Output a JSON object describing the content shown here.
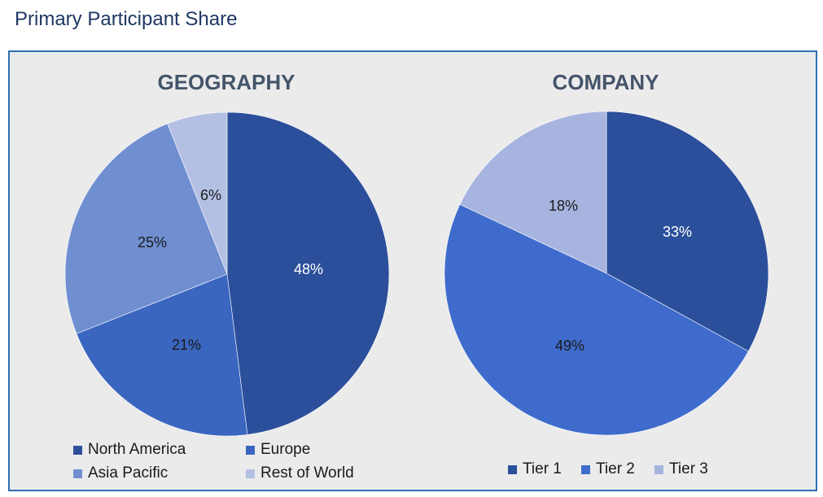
{
  "page": {
    "title": "Primary Participant Share"
  },
  "chart_data": [
    {
      "type": "pie",
      "title": "GEOGRAPHY",
      "categories": [
        "North America",
        "Europe",
        "Asia Pacific",
        "Rest of World"
      ],
      "values": [
        48,
        21,
        25,
        6
      ],
      "labels": [
        "48%",
        "21%",
        "25%",
        "6%"
      ],
      "colors": [
        "#2c4f9b",
        "#3b66c0",
        "#6f8fd1",
        "#b4c0e3"
      ],
      "label_colors": [
        "#ffffff",
        "#1a1a1a",
        "#1a1a1a",
        "#1a1a1a"
      ],
      "legend_position": "bottom"
    },
    {
      "type": "pie",
      "title": "COMPANY",
      "categories": [
        "Tier 1",
        "Tier 2",
        "Tier 3"
      ],
      "values": [
        33,
        49,
        18
      ],
      "labels": [
        "33%",
        "49%",
        "18%"
      ],
      "colors": [
        "#2c4f9b",
        "#3f6ccc",
        "#a7b4df"
      ],
      "label_colors": [
        "#ffffff",
        "#1a1a1a",
        "#1a1a1a"
      ],
      "legend_position": "bottom"
    }
  ]
}
